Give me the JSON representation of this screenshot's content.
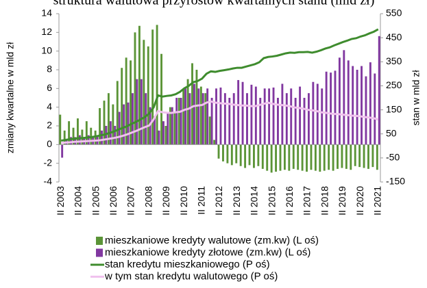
{
  "chart_data": {
    "type": "bar",
    "title": "struktura walutowa przyrostów kwartalnych stanu (mld zł)",
    "y_label": "zmiany kwartalne  w mld zł",
    "y2_label": "stan  w mld zł",
    "categories": [
      "II 2003",
      null,
      null,
      null,
      "II 2004",
      null,
      null,
      null,
      "II 2005",
      null,
      null,
      null,
      "II 2006",
      null,
      null,
      null,
      "II 2007",
      null,
      null,
      null,
      "II 2008",
      null,
      null,
      null,
      "II 2009",
      null,
      null,
      null,
      "II 2010",
      null,
      null,
      null,
      "II 2011",
      null,
      null,
      null,
      "II 2012",
      null,
      null,
      null,
      "II 2013",
      null,
      null,
      null,
      "II 2014",
      null,
      null,
      null,
      "II 2015",
      null,
      null,
      null,
      "II 2016",
      null,
      null,
      null,
      "II 2017",
      null,
      null,
      null,
      "II 2018",
      null,
      null,
      null,
      "II 2019",
      null,
      null,
      null,
      "II 2020",
      null,
      null,
      null,
      "II 2021"
    ],
    "ylim": [
      -4,
      14
    ],
    "yticks": [
      -4,
      -2,
      0,
      2,
      4,
      6,
      8,
      10,
      12,
      14
    ],
    "y2lim": [
      -150,
      550
    ],
    "y2ticks": [
      -150,
      -50,
      50,
      150,
      250,
      350,
      450,
      550
    ],
    "series": [
      {
        "name": "mieszkaniowe kredyty walutowe (zm.kw) (L oś)",
        "type": "bar",
        "color": "#5b9437",
        "values": [
          3.2,
          1.5,
          2.5,
          1.8,
          2.8,
          1.6,
          2.5,
          1.8,
          1.5,
          3.9,
          4.7,
          5.5,
          4.3,
          6.8,
          8.2,
          9.3,
          9.0,
          12.0,
          12.7,
          11.2,
          10.5,
          12.3,
          12.8,
          9.7,
          2.0,
          4.0,
          3.5,
          5.0,
          6.0,
          7.0,
          8.7,
          8.0,
          6.2,
          5.5,
          3.0,
          0.5,
          -1.5,
          -1.8,
          -2.0,
          -2.2,
          -2.0,
          -2.3,
          -2.5,
          -2.2,
          -2.5,
          -2.3,
          -2.6,
          -2.8,
          -3.0,
          -2.9,
          -2.8,
          -2.7,
          -2.8,
          -2.6,
          -2.7,
          -2.8,
          -2.9,
          -2.7,
          -2.8,
          -2.9,
          -2.8,
          -2.7,
          -2.8,
          -2.6,
          -2.5,
          -2.6,
          -2.7,
          -2.3,
          -2.4,
          -2.5,
          -2.6,
          -2.4,
          -2.7
        ]
      },
      {
        "name": "mieszkaniowe kredyty złotowe (zm.kw) (L oś)",
        "type": "bar",
        "color": "#8138a0",
        "values": [
          -1.4,
          0.5,
          0.8,
          0.8,
          1.0,
          0.8,
          1.0,
          0.8,
          1.0,
          1.5,
          2.0,
          2.5,
          2.0,
          3.5,
          4.3,
          4.5,
          5.5,
          7.0,
          7.0,
          5.5,
          4.0,
          3.0,
          1.5,
          2.5,
          3.5,
          4.0,
          5.0,
          5.0,
          6.0,
          5.5,
          6.5,
          6.0,
          5.5,
          6.0,
          5.0,
          6.0,
          6.1,
          5.5,
          5.0,
          5.5,
          6.9,
          6.7,
          5.5,
          6.4,
          6.2,
          5.0,
          6.0,
          6.0,
          6.1,
          5.0,
          6.5,
          5.5,
          6.0,
          5.0,
          6.2,
          5.0,
          5.5,
          6.7,
          6.5,
          6.0,
          7.8,
          7.7,
          7.9,
          9.3,
          10.1,
          9.0,
          8.4,
          8.0,
          8.4,
          7.3,
          8.8,
          7.6,
          11.6
        ]
      },
      {
        "name": "stan kredytu mieszkaniowego (P oś)",
        "type": "line",
        "axis": "y2",
        "color": "#3f8c2e",
        "values": [
          22,
          25,
          28,
          30,
          32,
          33,
          35,
          37,
          40,
          44,
          48,
          54,
          60,
          68,
          75,
          82,
          92,
          100,
          110,
          120,
          135,
          160,
          210,
          205,
          208,
          210,
          215,
          225,
          240,
          250,
          265,
          270,
          280,
          300,
          310,
          308,
          312,
          315,
          318,
          322,
          325,
          325,
          330,
          335,
          340,
          348,
          365,
          370,
          372,
          375,
          380,
          385,
          388,
          387,
          390,
          390,
          391,
          388,
          392,
          398,
          405,
          410,
          418,
          425,
          432,
          438,
          445,
          448,
          455,
          460,
          468,
          475,
          485
        ]
      },
      {
        "name": "w tym stan kredytu walutowego (P oś)",
        "type": "line",
        "axis": "y2",
        "color": "#f0c2ee",
        "values": [
          12,
          14,
          15,
          17,
          18,
          19,
          20,
          21,
          22,
          24,
          27,
          30,
          33,
          37,
          42,
          48,
          55,
          62,
          70,
          78,
          85,
          110,
          145,
          140,
          138,
          137,
          140,
          142,
          150,
          155,
          165,
          168,
          170,
          180,
          185,
          180,
          178,
          176,
          175,
          172,
          170,
          168,
          168,
          166,
          165,
          170,
          175,
          180,
          175,
          172,
          170,
          168,
          165,
          160,
          158,
          155,
          150,
          148,
          145,
          140,
          138,
          135,
          133,
          132,
          130,
          128,
          126,
          125,
          123,
          120,
          118,
          115,
          110
        ]
      }
    ]
  }
}
